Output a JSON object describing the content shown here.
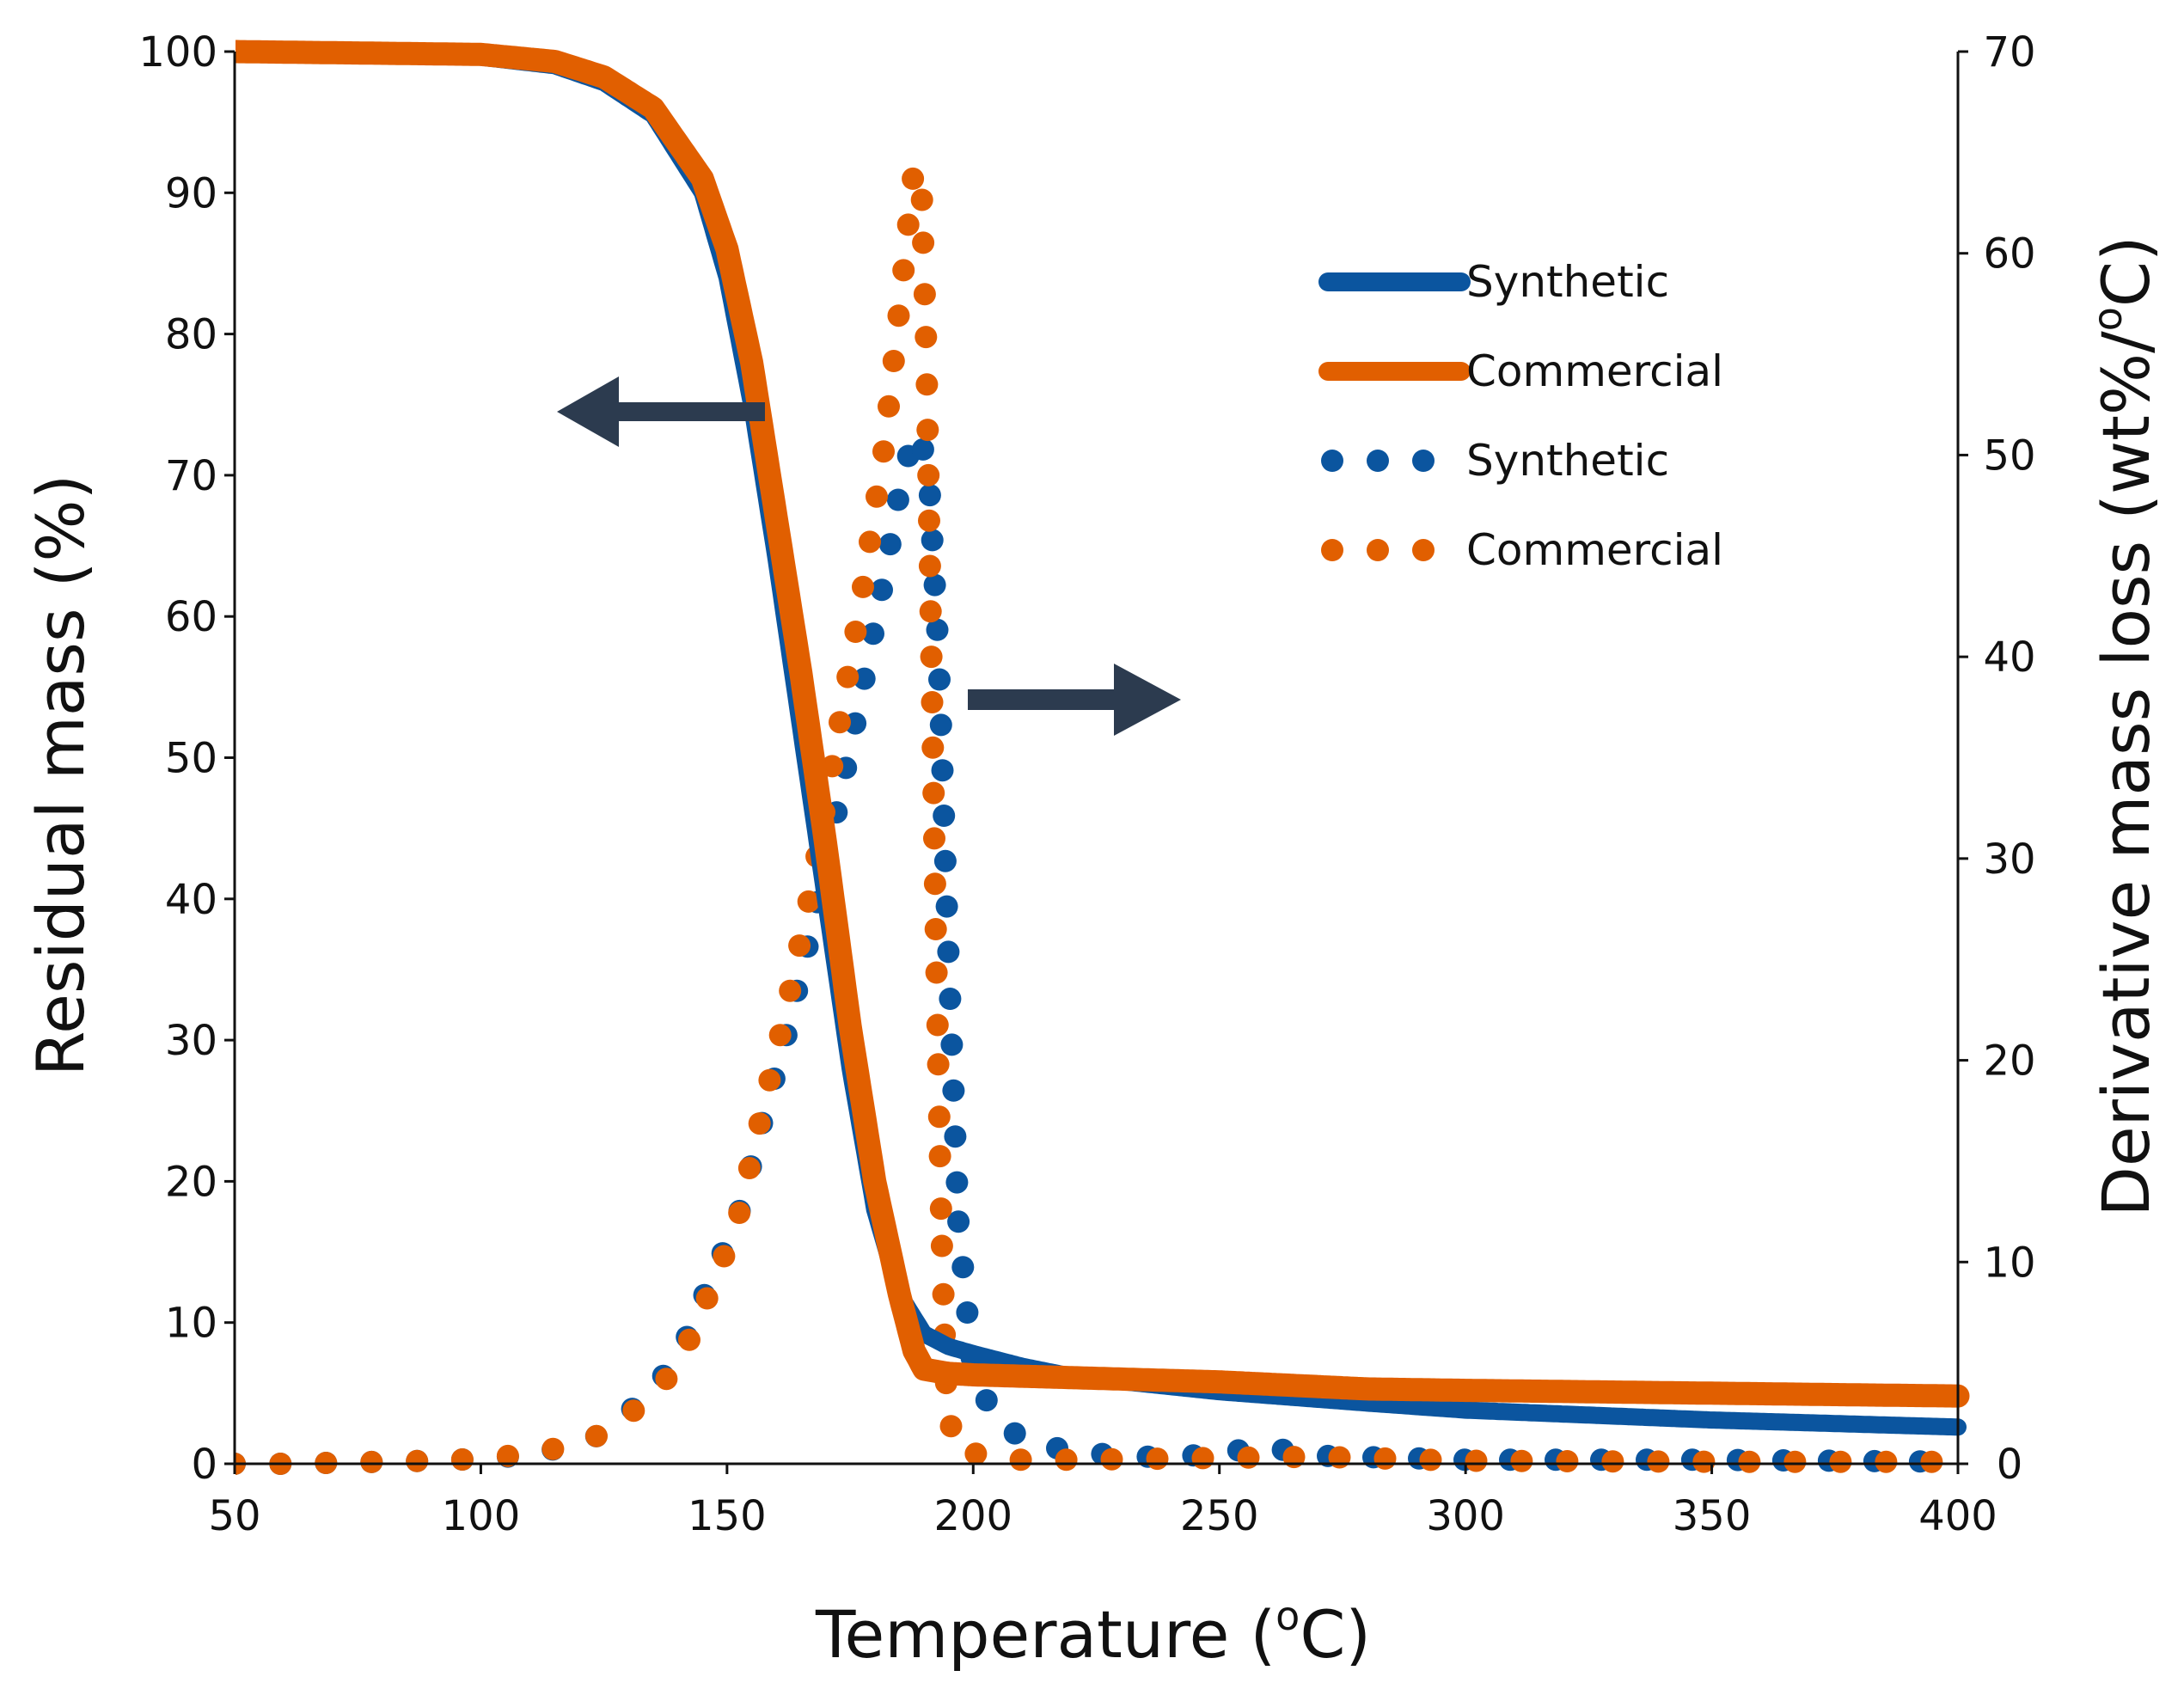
{
  "colors": {
    "synthetic": "#0b559f",
    "commercial": "#e15f00",
    "arrow": "#2c3b4f",
    "axis": "#111111"
  },
  "chart_data": {
    "type": "line",
    "title": "",
    "xlabel": "Temperature (",
    "xlabel_sup": "o",
    "xlabel_end": "C)",
    "ylabel": "Residual mass (%)",
    "y2label": "Derivative mass loss (wt%/",
    "y2label_sup": "o",
    "y2label_end": "C)",
    "xlim": [
      50,
      400
    ],
    "ylim": [
      0,
      100
    ],
    "y2lim": [
      0,
      70
    ],
    "xticks": [
      50,
      100,
      150,
      200,
      250,
      300,
      350,
      400
    ],
    "yticks": [
      0,
      10,
      20,
      30,
      40,
      50,
      60,
      70,
      80,
      90,
      100
    ],
    "y2ticks": [
      0,
      10,
      20,
      30,
      40,
      50,
      60,
      70
    ],
    "annotations": [
      {
        "type": "arrow",
        "direction": "left",
        "meaning": "residual mass curves use left axis"
      },
      {
        "type": "arrow",
        "direction": "right",
        "meaning": "derivative curves use right axis"
      }
    ],
    "legend": [
      {
        "label": "Synthetic",
        "style": "solid",
        "series": "synthetic"
      },
      {
        "label": "Commercial",
        "style": "solid",
        "series": "commercial"
      },
      {
        "label": "Synthetic",
        "style": "dotted",
        "series": "synthetic"
      },
      {
        "label": "Commercial",
        "style": "dotted",
        "series": "commercial"
      }
    ],
    "series": [
      {
        "name": "Synthetic",
        "kind": "residual_mass",
        "axis": "left",
        "style": "solid",
        "points": [
          [
            50,
            100
          ],
          [
            100,
            99.6
          ],
          [
            115,
            99
          ],
          [
            125,
            97.8
          ],
          [
            135,
            95.5
          ],
          [
            145,
            90
          ],
          [
            150,
            84
          ],
          [
            155,
            75
          ],
          [
            160,
            64
          ],
          [
            165,
            52
          ],
          [
            170,
            40
          ],
          [
            175,
            28
          ],
          [
            180,
            18
          ],
          [
            185,
            12
          ],
          [
            190,
            9.2
          ],
          [
            195,
            8.3
          ],
          [
            200,
            7.8
          ],
          [
            210,
            6.9
          ],
          [
            220,
            6.2
          ],
          [
            250,
            5.1
          ],
          [
            280,
            4.3
          ],
          [
            300,
            3.8
          ],
          [
            350,
            3.1
          ],
          [
            400,
            2.6
          ]
        ]
      },
      {
        "name": "Commercial",
        "kind": "residual_mass",
        "axis": "left",
        "style": "solid",
        "points": [
          [
            50,
            100
          ],
          [
            100,
            99.8
          ],
          [
            115,
            99.3
          ],
          [
            125,
            98.2
          ],
          [
            135,
            96
          ],
          [
            145,
            91
          ],
          [
            150,
            86
          ],
          [
            155,
            78
          ],
          [
            160,
            67
          ],
          [
            165,
            56
          ],
          [
            170,
            44
          ],
          [
            175,
            31
          ],
          [
            180,
            20
          ],
          [
            185,
            12
          ],
          [
            188,
            8
          ],
          [
            190,
            6.7
          ],
          [
            195,
            6.4
          ],
          [
            200,
            6.3
          ],
          [
            220,
            6.1
          ],
          [
            250,
            5.8
          ],
          [
            280,
            5.3
          ],
          [
            300,
            5.2
          ],
          [
            350,
            5
          ],
          [
            400,
            4.8
          ]
        ]
      },
      {
        "name": "Synthetic",
        "kind": "derivative",
        "axis": "right",
        "style": "dotted",
        "points": [
          [
            50,
            0
          ],
          [
            60,
            0
          ],
          [
            70,
            0.05
          ],
          [
            80,
            0.1
          ],
          [
            90,
            0.15
          ],
          [
            100,
            0.25
          ],
          [
            110,
            0.45
          ],
          [
            118,
            0.9
          ],
          [
            125,
            1.5
          ],
          [
            133,
            3.2
          ],
          [
            140,
            5.2
          ],
          [
            147,
            9.3
          ],
          [
            152,
            12
          ],
          [
            157,
            16.8
          ],
          [
            162,
            21.2
          ],
          [
            167,
            26.3
          ],
          [
            172,
            32
          ],
          [
            177,
            37.8
          ],
          [
            182,
            44
          ],
          [
            186,
            49.5
          ],
          [
            189,
            51.2
          ],
          [
            191,
            48.9
          ],
          [
            193,
            40
          ],
          [
            195,
            25
          ],
          [
            197,
            12
          ],
          [
            200,
            4.5
          ],
          [
            205,
            2
          ],
          [
            212,
            1
          ],
          [
            222,
            0.55
          ],
          [
            235,
            0.35
          ],
          [
            250,
            0.45
          ],
          [
            258,
            0.9
          ],
          [
            270,
            0.4
          ],
          [
            300,
            0.2
          ],
          [
            350,
            0.2
          ],
          [
            400,
            0.1
          ]
        ]
      },
      {
        "name": "Commercial",
        "kind": "derivative",
        "axis": "right",
        "style": "dotted",
        "points": [
          [
            50,
            0
          ],
          [
            60,
            0
          ],
          [
            70,
            0.05
          ],
          [
            80,
            0.1
          ],
          [
            90,
            0.15
          ],
          [
            100,
            0.25
          ],
          [
            110,
            0.5
          ],
          [
            118,
            0.9
          ],
          [
            125,
            1.5
          ],
          [
            133,
            3
          ],
          [
            140,
            4.8
          ],
          [
            147,
            8.8
          ],
          [
            152,
            11.9
          ],
          [
            157,
            17.3
          ],
          [
            162,
            22.5
          ],
          [
            167,
            28.4
          ],
          [
            172,
            35.5
          ],
          [
            177,
            42.5
          ],
          [
            182,
            50.5
          ],
          [
            186,
            59.5
          ],
          [
            188,
            64.3
          ],
          [
            189.5,
            63.5
          ],
          [
            190.5,
            55
          ],
          [
            191.5,
            40
          ],
          [
            192.5,
            25
          ],
          [
            193.5,
            12
          ],
          [
            194.5,
            4
          ],
          [
            196,
            0.8
          ],
          [
            205,
            0.2
          ],
          [
            220,
            0.2
          ],
          [
            270,
            0.35
          ],
          [
            300,
            0.15
          ],
          [
            350,
            0.1
          ],
          [
            400,
            0.1
          ]
        ]
      }
    ]
  }
}
